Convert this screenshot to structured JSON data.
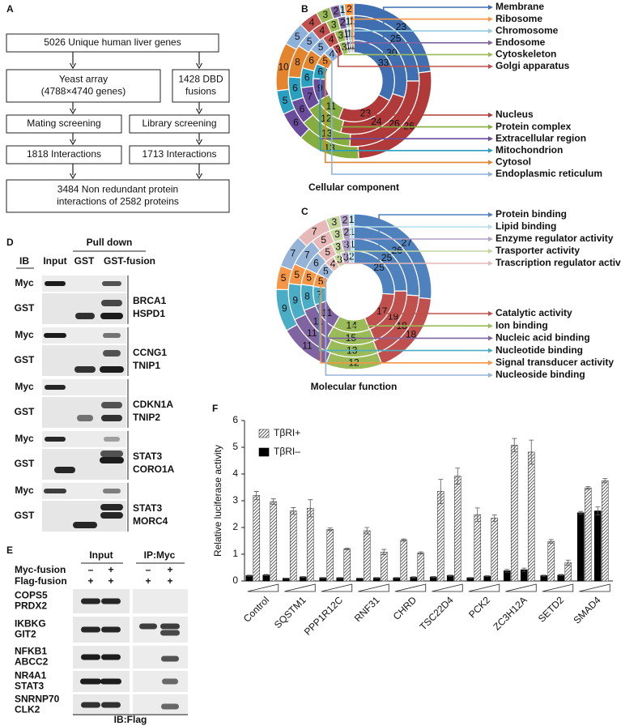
{
  "panel_labels": {
    "a": "A",
    "b": "B",
    "c": "C",
    "d": "D",
    "e": "E",
    "f": "F"
  },
  "flowchart": {
    "nodes": [
      [
        "5026 Unique human liver genes"
      ],
      [
        "Yeast array",
        "(4788×4740 genes)"
      ],
      [
        "1428 DBD",
        "fusions"
      ],
      [
        "Mating screening"
      ],
      [
        "Library screening"
      ],
      [
        "1818 Interactions"
      ],
      [
        "1713 Interactions"
      ],
      [
        "3484 Non redundant protein",
        "interactions of 2582 proteins"
      ]
    ]
  },
  "chart_data": [
    {
      "type": "donut",
      "title": "Cellular component",
      "categories": [
        "Membrane",
        "Nucleus",
        "Protein complex",
        "Extracellular region",
        "Mitochondrion",
        "Cytosol",
        "Endoplasmic reticulum",
        "Golgi apparatus",
        "Cytoskeleton",
        "Endosome",
        "Chromosome",
        "Ribosome"
      ],
      "colors": [
        "#3f6fb0",
        "#b03a3a",
        "#86ad3f",
        "#6a4c9c",
        "#2a9fc0",
        "#e3852e",
        "#8eb1dc",
        "#c0504d",
        "#9bbb59",
        "#8064a2",
        "#93cddd",
        "#f79646"
      ],
      "rings": [
        [
          23,
          26,
          13,
          6,
          5,
          10,
          5,
          4,
          3,
          2,
          1,
          2
        ],
        [
          25,
          26,
          13,
          6,
          6,
          8,
          5,
          4,
          3,
          2,
          1,
          1
        ],
        [
          30,
          24,
          12,
          7,
          6,
          6,
          5,
          4,
          3,
          1,
          1,
          1
        ],
        [
          33,
          23,
          11,
          9,
          6,
          5,
          4,
          3,
          3,
          1,
          1,
          1
        ]
      ]
    },
    {
      "type": "donut",
      "title": "Molecular function",
      "categories": [
        "Protein binding",
        "Catalytic activity",
        "Ion binding",
        "Nucleic acid binding",
        "Nucleotide binding",
        "Signal transducer activity",
        "Nucleoside binding",
        "Trascription regulator activity",
        "Trasporter activity",
        "Enzyme regulator activity",
        "Lipid binding"
      ],
      "colors": [
        "#4f81bd",
        "#c0504d",
        "#9bbb59",
        "#8064a2",
        "#4bacc6",
        "#f79646",
        "#95b3d7",
        "#e6b9b8",
        "#c3d69b",
        "#b3a2c7",
        "#b7dee8"
      ],
      "rings": [
        [
          27,
          18,
          12,
          11,
          9,
          5,
          7,
          7,
          3,
          2,
          1
        ],
        [
          26,
          18,
          13,
          11,
          9,
          5,
          7,
          5,
          3,
          2,
          1
        ],
        [
          25,
          19,
          15,
          11,
          8,
          5,
          6,
          5,
          3,
          3,
          1
        ],
        [
          25,
          17,
          14,
          11,
          7,
          5,
          5,
          4,
          3,
          3,
          2
        ]
      ]
    },
    {
      "type": "bar",
      "ylabel": "Relative luciferase activity",
      "categories": [
        "Control",
        "SQSTM1",
        "PPP1R12C",
        "RNF31",
        "CHRD",
        "TSC22D4",
        "PCK2",
        "ZC3H12A",
        "SETD2",
        "SMAD4"
      ],
      "series": [
        {
          "name": "TβRI+",
          "color": "#444444",
          "hatch": true,
          "values": [
            [
              3.2,
              2.97
            ],
            [
              2.62,
              2.72
            ],
            [
              1.93,
              1.2
            ],
            [
              1.88,
              1.08
            ],
            [
              1.53,
              1.05
            ],
            [
              3.35,
              3.92
            ],
            [
              2.48,
              2.35
            ],
            [
              5.08,
              4.82
            ],
            [
              1.48,
              0.68
            ],
            [
              3.48,
              3.75
            ]
          ],
          "errors": [
            [
              0.15,
              0.1
            ],
            [
              0.12,
              0.32
            ],
            [
              0.05,
              0.03
            ],
            [
              0.12,
              0.1
            ],
            [
              0.04,
              0.04
            ],
            [
              0.45,
              0.3
            ],
            [
              0.25,
              0.12
            ],
            [
              0.25,
              0.45
            ],
            [
              0.07,
              0.1
            ],
            [
              0.05,
              0.08
            ]
          ]
        },
        {
          "name": "TβRI–",
          "color": "#000000",
          "hatch": false,
          "values": [
            [
              0.2,
              0.22
            ],
            [
              0.1,
              0.15
            ],
            [
              0.12,
              0.12
            ],
            [
              0.1,
              0.12
            ],
            [
              0.12,
              0.14
            ],
            [
              0.15,
              0.2
            ],
            [
              0.12,
              0.18
            ],
            [
              0.38,
              0.42
            ],
            [
              0.2,
              0.22
            ],
            [
              2.55,
              2.62
            ]
          ],
          "errors": [
            [
              0.02,
              0.02
            ],
            [
              0.01,
              0.02
            ],
            [
              0.01,
              0.01
            ],
            [
              0.01,
              0.01
            ],
            [
              0.01,
              0.02
            ],
            [
              0.02,
              0.02
            ],
            [
              0.01,
              0.02
            ],
            [
              0.05,
              0.06
            ],
            [
              0.02,
              0.02
            ],
            [
              0.05,
              0.15
            ]
          ]
        }
      ],
      "ylim": [
        0,
        6
      ],
      "yticks": [
        0,
        1,
        2,
        3,
        4,
        5,
        6
      ]
    }
  ],
  "pulldown": {
    "header": "Pull down",
    "ib": "IB",
    "lanes": [
      "Input",
      "GST",
      "GST-fusion"
    ],
    "rows": [
      {
        "antibodies": [
          "Myc",
          "GST"
        ],
        "proteins": [
          "BRCA1",
          "HSPD1"
        ]
      },
      {
        "antibodies": [
          "Myc",
          "GST"
        ],
        "proteins": [
          "CCNG1",
          "TNIP1"
        ]
      },
      {
        "antibodies": [
          "Myc",
          "GST"
        ],
        "proteins": [
          "CDKN1A",
          "TNIP2"
        ]
      },
      {
        "antibodies": [
          "Myc",
          "GST"
        ],
        "proteins": [
          "STAT3",
          "CORO1A"
        ]
      },
      {
        "antibodies": [
          "Myc",
          "GST"
        ],
        "proteins": [
          "STAT3",
          "MORC4"
        ]
      }
    ]
  },
  "coip": {
    "headers": [
      "Input",
      "IP:Myc"
    ],
    "row_labels": [
      "Myc-fusion",
      "Flag-fusion"
    ],
    "signs": [
      [
        "–",
        "+",
        "–",
        "+"
      ],
      [
        "+",
        "+",
        "+",
        "+"
      ]
    ],
    "proteins": [
      [
        "COPS5",
        "PRDX2"
      ],
      [
        "IKBKG",
        "GIT2"
      ],
      [
        "NFKB1",
        "ABCC2"
      ],
      [
        "NR4A1",
        "STAT3"
      ],
      [
        "SNRNP70",
        "CLK2"
      ]
    ],
    "footer": "IB:Flag"
  }
}
